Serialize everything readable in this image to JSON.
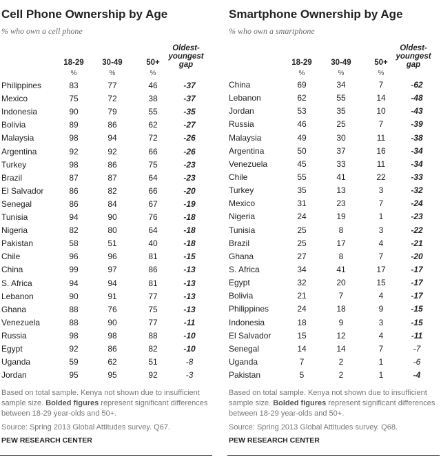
{
  "chart_data": [
    {
      "type": "table",
      "title": "Cell Phone Ownership by Age",
      "subtitle": "% who own a cell phone",
      "columns": [
        "18-29",
        "30-49",
        "50+",
        "Oldest-youngest gap"
      ],
      "unit": "%",
      "rows": [
        [
          "Philippines",
          83,
          77,
          46,
          -37,
          true
        ],
        [
          "Mexico",
          75,
          72,
          38,
          -37,
          true
        ],
        [
          "Indonesia",
          90,
          79,
          55,
          -35,
          true
        ],
        [
          "Bolivia",
          89,
          86,
          62,
          -27,
          true
        ],
        [
          "Malaysia",
          98,
          94,
          72,
          -26,
          true
        ],
        [
          "Argentina",
          92,
          92,
          66,
          -26,
          true
        ],
        [
          "Turkey",
          98,
          86,
          75,
          -23,
          true
        ],
        [
          "Brazil",
          87,
          87,
          64,
          -23,
          true
        ],
        [
          "El Salvador",
          86,
          82,
          66,
          -20,
          true
        ],
        [
          "Senegal",
          86,
          84,
          67,
          -19,
          true
        ],
        [
          "Tunisia",
          94,
          90,
          76,
          -18,
          true
        ],
        [
          "Nigeria",
          82,
          80,
          64,
          -18,
          true
        ],
        [
          "Pakistan",
          58,
          51,
          40,
          -18,
          true
        ],
        [
          "Chile",
          96,
          96,
          81,
          -15,
          true
        ],
        [
          "China",
          99,
          97,
          86,
          -13,
          true
        ],
        [
          "S. Africa",
          94,
          94,
          81,
          -13,
          true
        ],
        [
          "Lebanon",
          90,
          91,
          77,
          -13,
          true
        ],
        [
          "Ghana",
          88,
          76,
          75,
          -13,
          true
        ],
        [
          "Venezuela",
          88,
          90,
          77,
          -11,
          true
        ],
        [
          "Russia",
          98,
          98,
          88,
          -10,
          true
        ],
        [
          "Egypt",
          92,
          86,
          82,
          -10,
          true
        ],
        [
          "Uganda",
          59,
          62,
          51,
          -8,
          false
        ],
        [
          "Jordan",
          95,
          95,
          92,
          -3,
          false
        ]
      ],
      "note_pre": "Based on total sample. Kenya not shown due to insufficient sample size. ",
      "note_bold": "Bolded figures",
      "note_post": " represent significant differences between 18-29 year-olds and 50+.",
      "source": "Source: Spring 2013 Global Attitudes survey. Q67.",
      "credit": "PEW RESEARCH CENTER"
    },
    {
      "type": "table",
      "title": "Smartphone Ownership by Age",
      "subtitle": "% who own a smartphone",
      "columns": [
        "18-29",
        "30-49",
        "50+",
        "Oldest-youngest gap"
      ],
      "unit": "%",
      "rows": [
        [
          "China",
          69,
          34,
          7,
          -62,
          true
        ],
        [
          "Lebanon",
          62,
          55,
          14,
          -48,
          true
        ],
        [
          "Jordan",
          53,
          35,
          10,
          -43,
          true
        ],
        [
          "Russia",
          46,
          25,
          7,
          -39,
          true
        ],
        [
          "Malaysia",
          49,
          30,
          11,
          -38,
          true
        ],
        [
          "Argentina",
          50,
          37,
          16,
          -34,
          true
        ],
        [
          "Venezuela",
          45,
          33,
          11,
          -34,
          true
        ],
        [
          "Chile",
          55,
          41,
          22,
          -33,
          true
        ],
        [
          "Turkey",
          35,
          13,
          3,
          -32,
          true
        ],
        [
          "Mexico",
          31,
          23,
          7,
          -24,
          true
        ],
        [
          "Nigeria",
          24,
          19,
          1,
          -23,
          true
        ],
        [
          "Tunisia",
          25,
          8,
          3,
          -22,
          true
        ],
        [
          "Brazil",
          25,
          17,
          4,
          -21,
          true
        ],
        [
          "Ghana",
          27,
          8,
          7,
          -20,
          true
        ],
        [
          "S. Africa",
          34,
          41,
          17,
          -17,
          true
        ],
        [
          "Egypt",
          32,
          20,
          15,
          -17,
          true
        ],
        [
          "Bolivia",
          21,
          7,
          4,
          -17,
          true
        ],
        [
          "Philippines",
          24,
          18,
          9,
          -15,
          true
        ],
        [
          "Indonesia",
          18,
          9,
          3,
          -15,
          true
        ],
        [
          "El Salvador",
          15,
          12,
          4,
          -11,
          true
        ],
        [
          "Senegal",
          14,
          14,
          7,
          -7,
          false
        ],
        [
          "Uganda",
          7,
          2,
          1,
          -6,
          false
        ],
        [
          "Pakistan",
          5,
          2,
          1,
          -4,
          true
        ]
      ],
      "note_pre": "Based on total sample. Kenya not shown due to insufficient sample size. ",
      "note_bold": "Bolded figures",
      "note_post": " represent significant differences between 18-29 year-olds and 50+.",
      "source": "Source: Spring 2013 Global Attitudes survey. Q68.",
      "credit": "PEW RESEARCH CENTER"
    }
  ]
}
